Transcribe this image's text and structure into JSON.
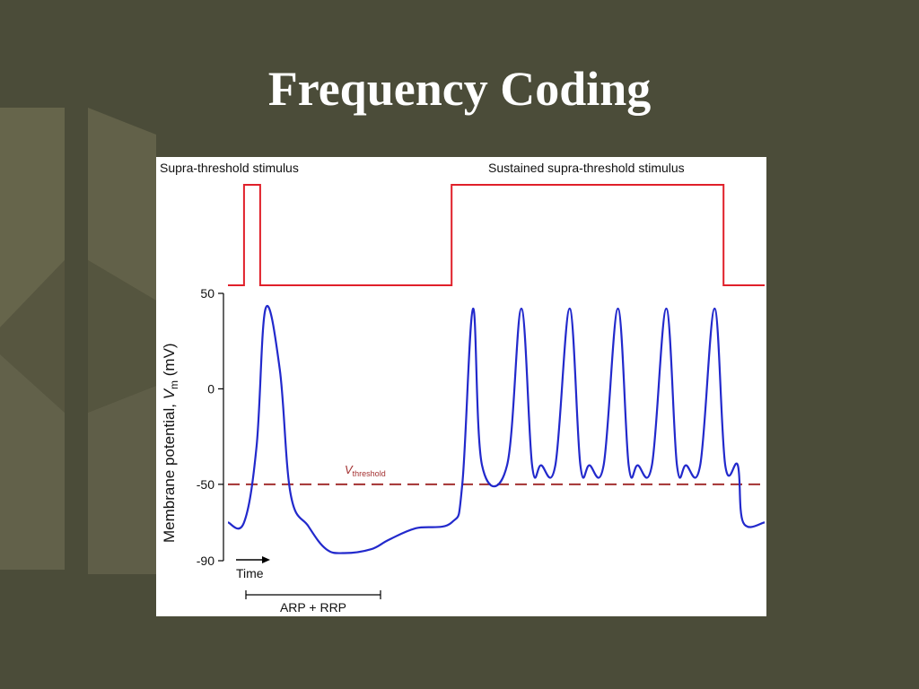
{
  "slide": {
    "title": "Frequency Coding",
    "background_color": "#4b4c39"
  },
  "chart_data": {
    "type": "line",
    "stimulus_labels": [
      "Supra-threshold stimulus",
      "Sustained supra-threshold stimulus"
    ],
    "ylabel_prefix": "Membrane potential, ",
    "ylabel_var": "V",
    "ylabel_sub": "m",
    "ylabel_unit": " (mV)",
    "y_ticks": [
      50,
      0,
      -50,
      -90
    ],
    "ylim": [
      -90,
      50
    ],
    "threshold": {
      "value": -50,
      "label_var": "V",
      "label_sub": "threshold",
      "color": "#a33030"
    },
    "time_label": "Time",
    "arp_rrp_label": "ARP + RRP",
    "stimulus_color": "#e0202a",
    "membrane_color": "#2229cc",
    "resting_potential": -70,
    "plateau_potential": -40,
    "peak_potential": 42,
    "hyperpolarization_min": -86,
    "series": [
      {
        "name": "Stimulus",
        "x": [
          0,
          9,
          9,
          18,
          18,
          125,
          125,
          277,
          277,
          300
        ],
        "y": [
          0,
          0,
          1,
          1,
          0,
          0,
          1,
          1,
          0,
          0
        ]
      },
      {
        "name": "Membrane potential",
        "x": [
          0,
          9,
          16,
          21,
          29,
          35,
          45,
          55,
          65,
          80,
          90,
          105,
          125,
          131,
          137,
          142,
          156,
          164,
          170,
          175,
          183,
          191,
          197,
          202,
          210,
          218,
          224,
          229,
          237,
          245,
          251,
          256,
          264,
          272,
          278,
          285,
          288,
          300
        ],
        "y": [
          -70,
          -70,
          -30,
          42,
          10,
          -55,
          -72,
          -84,
          -86,
          -84,
          -79,
          -73,
          -70,
          -50,
          42,
          -40,
          -40,
          42,
          -40,
          -40,
          -40,
          42,
          -40,
          -40,
          -40,
          42,
          -40,
          -40,
          -40,
          42,
          -40,
          -40,
          -40,
          42,
          -40,
          -40,
          -70,
          -70
        ]
      }
    ]
  }
}
